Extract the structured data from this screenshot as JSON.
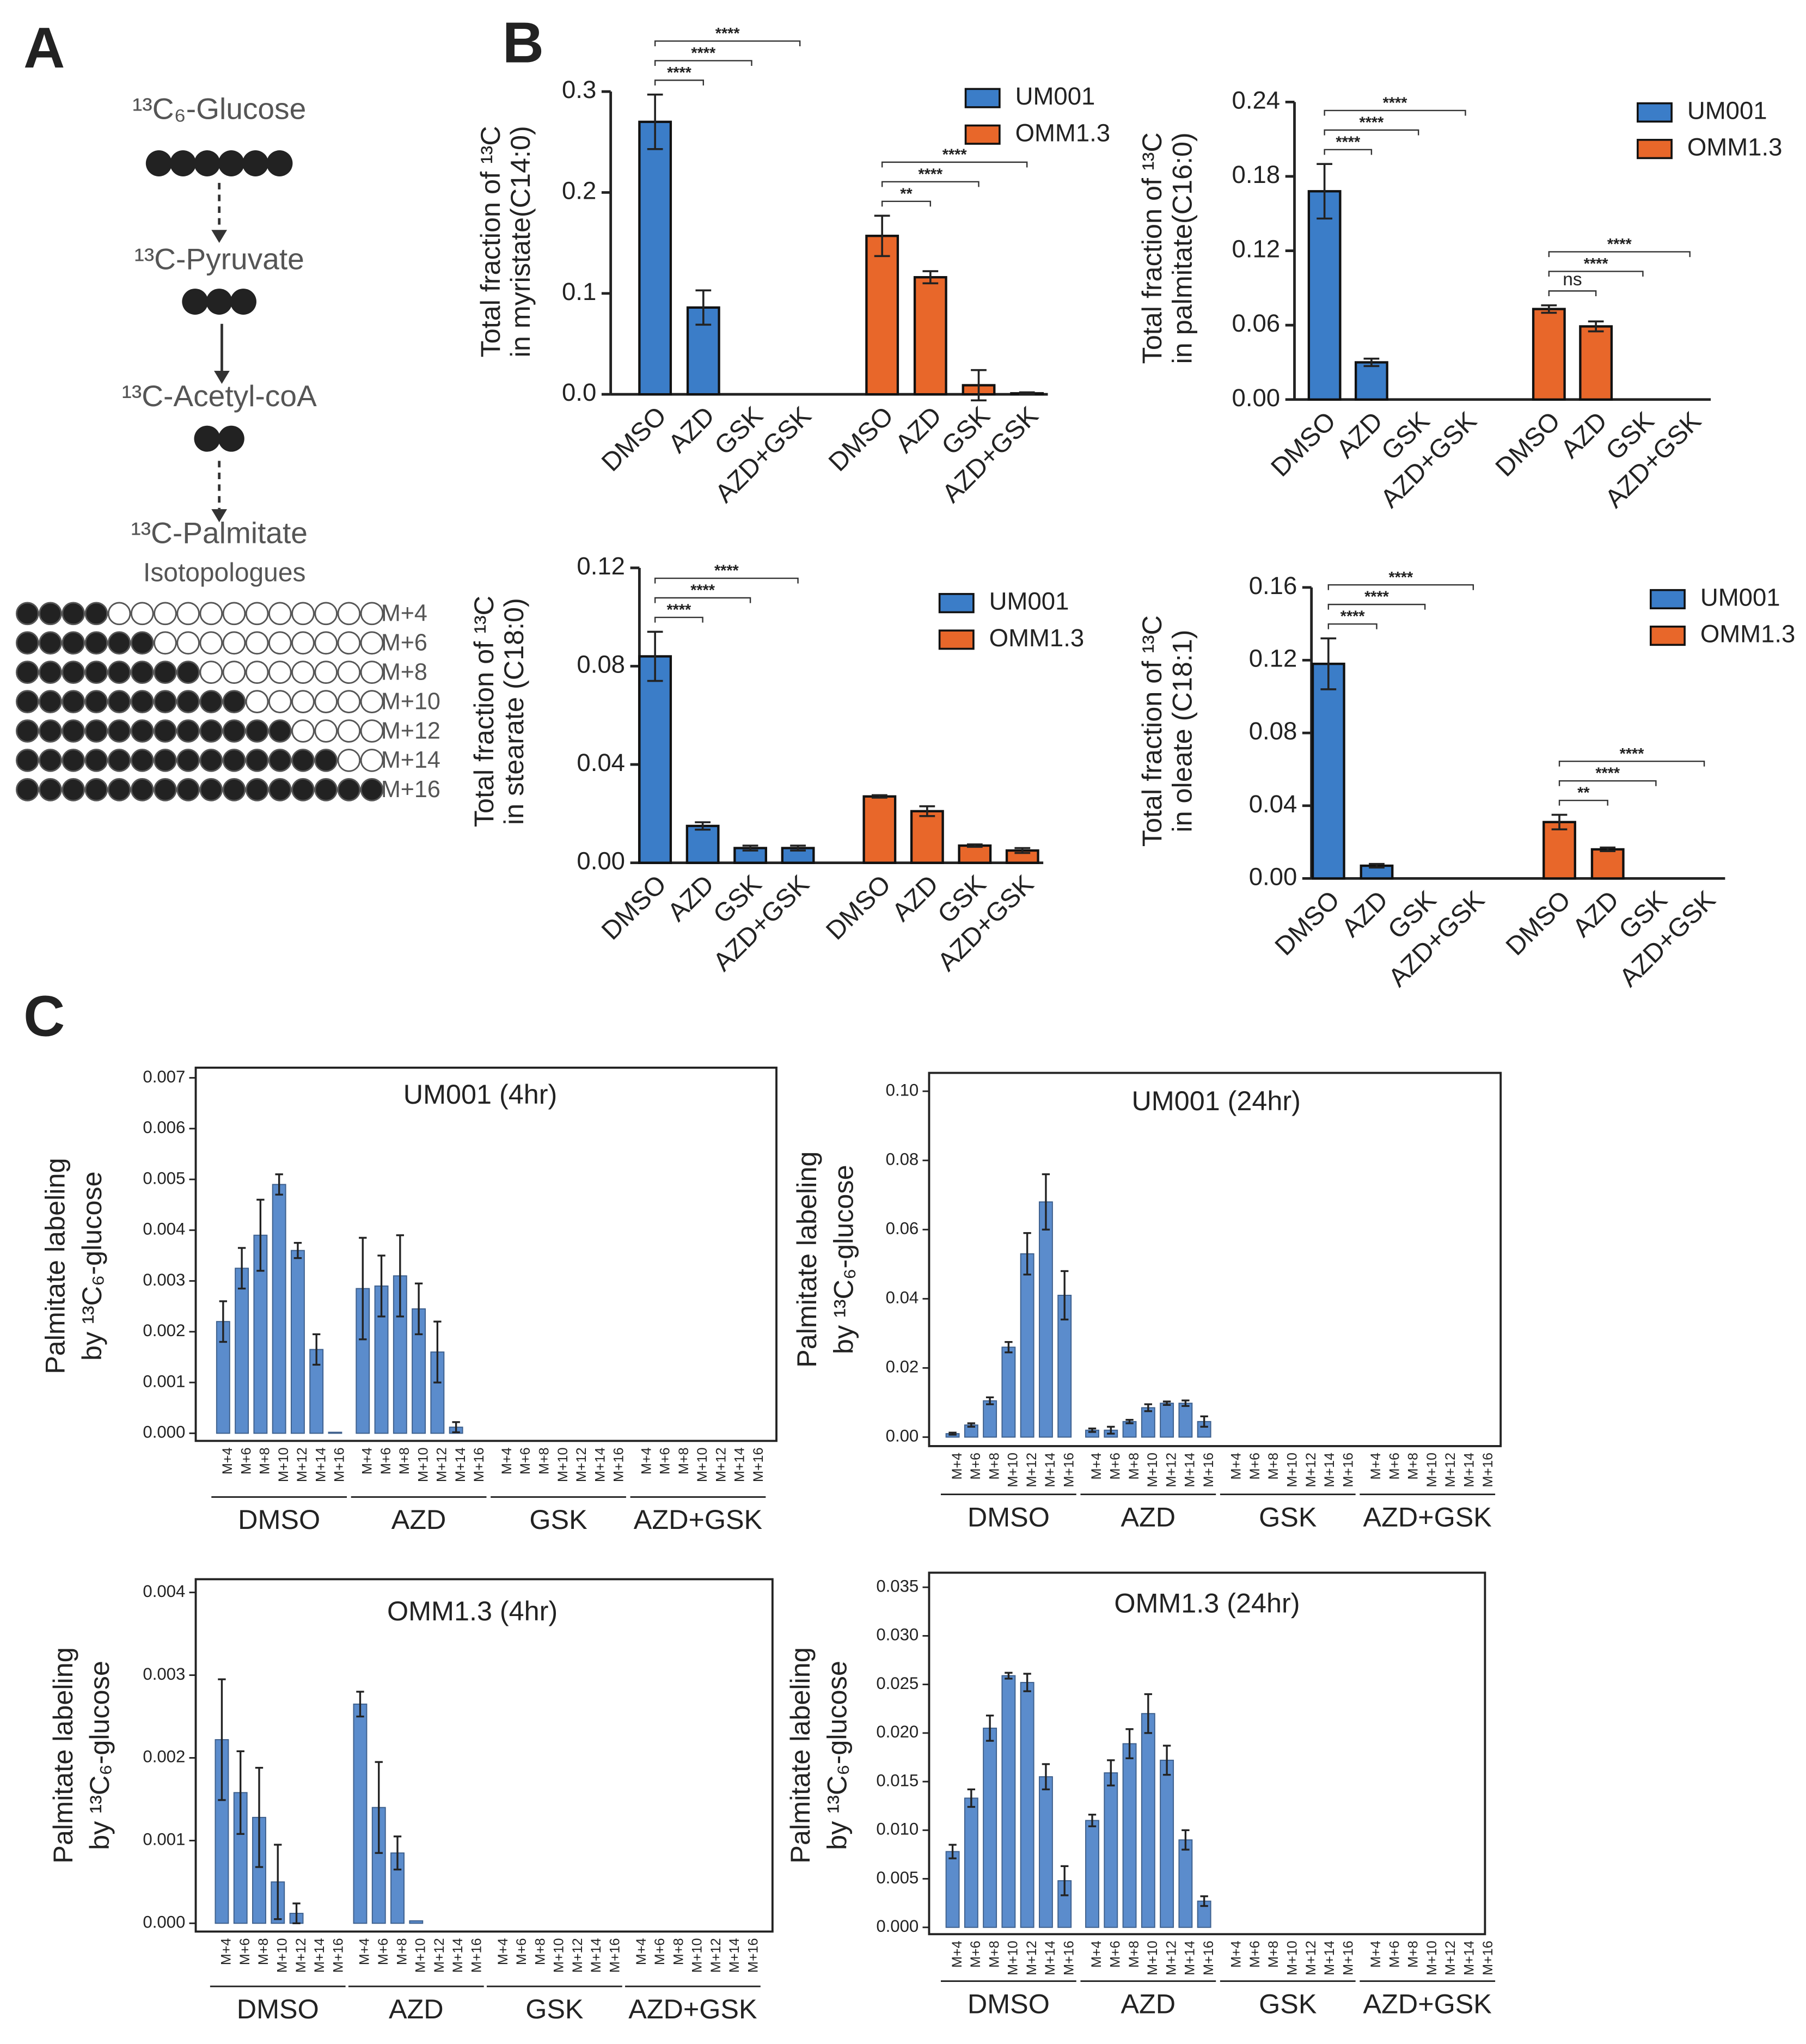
{
  "panels": [
    "A",
    "B",
    "C"
  ],
  "diagram": {
    "steps": [
      {
        "label": "¹³C₆-Glucose",
        "carbons": 6
      },
      {
        "label": "¹³C-Pyruvate",
        "carbons": 3
      },
      {
        "label": "¹³C-Acetyl-coA",
        "carbons": 2
      }
    ],
    "product": [
      "¹³C-Palmitate",
      "Isotopologues"
    ],
    "isotopologues": [
      {
        "label": "M+4",
        "labeled_carbons": 4
      },
      {
        "label": "M+6",
        "labeled_carbons": 6
      },
      {
        "label": "M+8",
        "labeled_carbons": 8
      },
      {
        "label": "M+10",
        "labeled_carbons": 10
      },
      {
        "label": "M+12",
        "labeled_carbons": 12
      },
      {
        "label": "M+14",
        "labeled_carbons": 14
      },
      {
        "label": "M+16",
        "labeled_carbons": 16
      }
    ]
  },
  "chart_data": [
    {
      "type": "bar",
      "ylabel": [
        "Total fraction of ¹³C",
        "in myristate(C14:0)"
      ],
      "categories": [
        "DMSO",
        "AZD",
        "GSK",
        "AZD+GSK"
      ],
      "ylim": [
        0,
        0.3
      ],
      "yticks": [
        {
          "value": 0,
          "label": "0.0"
        },
        0.1,
        0.2,
        0.3
      ],
      "legend": "upper right",
      "series": [
        {
          "name": "UM001",
          "color": "#3b7dc8",
          "values": [
            0.27,
            0.086,
            0,
            0
          ],
          "errors": [
            0.027,
            0.017,
            0,
            0
          ],
          "significance": [
            "****",
            "****",
            "****"
          ]
        },
        {
          "name": "OMM1.3",
          "color": "#e8672a",
          "values": [
            0.157,
            0.116,
            0.009,
            0.001
          ],
          "errors": [
            0.02,
            0.006,
            0.015,
            0.001
          ],
          "significance": [
            "**",
            "****",
            "****"
          ]
        }
      ]
    },
    {
      "type": "bar",
      "ylabel": [
        "Total fraction of ¹³C",
        "in palmitate(C16:0)"
      ],
      "categories": [
        "DMSO",
        "AZD",
        "GSK",
        "AZD+GSK"
      ],
      "ylim": [
        0,
        0.24
      ],
      "yticks": [
        {
          "value": 0,
          "label": "0.00"
        },
        0.06,
        0.12,
        0.18,
        0.24
      ],
      "legend": "upper right",
      "series": [
        {
          "name": "UM001",
          "color": "#3b7dc8",
          "values": [
            0.168,
            0.03,
            0,
            0
          ],
          "errors": [
            0.022,
            0.003,
            0,
            0
          ],
          "significance": [
            "****",
            "****",
            "****"
          ]
        },
        {
          "name": "OMM1.3",
          "color": "#e8672a",
          "values": [
            0.073,
            0.059,
            0,
            0
          ],
          "errors": [
            0.003,
            0.004,
            0,
            0
          ],
          "significance": [
            "ns",
            "****",
            "****"
          ]
        }
      ]
    },
    {
      "type": "bar",
      "ylabel": [
        "Total fraction of ¹³C",
        "in stearate (C18:0)"
      ],
      "categories": [
        "DMSO",
        "AZD",
        "GSK",
        "AZD+GSK"
      ],
      "ylim": [
        0,
        0.12
      ],
      "yticks": [
        {
          "value": 0,
          "label": "0.00"
        },
        0.04,
        0.08,
        0.12
      ],
      "legend": "upper right",
      "series": [
        {
          "name": "UM001",
          "color": "#3b7dc8",
          "values": [
            0.084,
            0.015,
            0.006,
            0.006
          ],
          "errors": [
            0.01,
            0.0015,
            0.001,
            0.001
          ],
          "significance": [
            "****",
            "****",
            "****"
          ]
        },
        {
          "name": "OMM1.3",
          "color": "#e8672a",
          "values": [
            0.027,
            0.021,
            0.007,
            0.005
          ],
          "errors": [
            0.0005,
            0.002,
            0.0005,
            0.001
          ]
        }
      ]
    },
    {
      "type": "bar",
      "ylabel": [
        "Total fraction of ¹³C",
        "in oleate (C18:1)"
      ],
      "categories": [
        "DMSO",
        "AZD",
        "GSK",
        "AZD+GSK"
      ],
      "ylim": [
        0,
        0.16
      ],
      "yticks": [
        {
          "value": 0,
          "label": "0.00"
        },
        0.04,
        0.08,
        0.12,
        0.16
      ],
      "legend": "upper right",
      "series": [
        {
          "name": "UM001",
          "color": "#3b7dc8",
          "values": [
            0.118,
            0.007,
            0,
            0
          ],
          "errors": [
            0.014,
            0.001,
            0,
            0
          ],
          "significance": [
            "****",
            "****",
            "****"
          ]
        },
        {
          "name": "OMM1.3",
          "color": "#e8672a",
          "values": [
            0.031,
            0.016,
            0,
            0
          ],
          "errors": [
            0.004,
            0.001,
            0,
            0
          ],
          "significance": [
            "**",
            "****",
            "****"
          ]
        }
      ]
    },
    {
      "type": "bar",
      "title": "UM001 (4hr)",
      "ylabel": [
        "Palmitate labeling",
        "by ¹³C₆-glucose"
      ],
      "color": "#5b8ccc",
      "categories": [
        "M+4",
        "M+6",
        "M+8",
        "M+10",
        "M+12",
        "M+14",
        "M+16"
      ],
      "ylim": [
        -0.00015,
        0.0072
      ],
      "yticks": [
        {
          "value": 0,
          "label": "0.000"
        },
        0.001,
        0.002,
        0.003,
        0.004,
        0.005,
        0.006,
        0.007
      ],
      "groups": [
        {
          "name": "DMSO",
          "values": [
            0.0022,
            0.00325,
            0.0039,
            0.0049,
            0.0036,
            0.00165,
            2e-05
          ],
          "errors": [
            0.0004,
            0.0004,
            0.0007,
            0.0002,
            0.00015,
            0.0003,
            0
          ]
        },
        {
          "name": "AZD",
          "values": [
            0.00285,
            0.0029,
            0.0031,
            0.00245,
            0.0016,
            0.00012,
            0
          ],
          "errors": [
            0.001,
            0.0006,
            0.0008,
            0.0005,
            0.0006,
            0.0001,
            0
          ]
        },
        {
          "name": "GSK",
          "values": [
            0,
            0,
            0,
            0,
            0,
            0,
            0
          ],
          "errors": [
            0,
            0,
            0,
            0,
            0,
            0,
            0
          ]
        },
        {
          "name": "AZD+GSK",
          "values": [
            0,
            0,
            0,
            0,
            0,
            0,
            0
          ],
          "errors": [
            0,
            0,
            0,
            0,
            0,
            0,
            0
          ]
        }
      ]
    },
    {
      "type": "bar",
      "title": "UM001 (24hr)",
      "ylabel": [
        "Palmitate labeling",
        "by ¹³C₆-glucose"
      ],
      "color": "#5b8ccc",
      "categories": [
        "M+4",
        "M+6",
        "M+8",
        "M+10",
        "M+12",
        "M+14",
        "M+16"
      ],
      "ylim": [
        -0.0026,
        0.1053
      ],
      "yticks": [
        {
          "value": 0,
          "label": "0.00"
        },
        0.02,
        0.04,
        0.06,
        0.08,
        {
          "value": 0.1,
          "label": "0.10"
        }
      ],
      "groups": [
        {
          "name": "DMSO",
          "values": [
            0.001,
            0.0035,
            0.0105,
            0.026,
            0.053,
            0.068,
            0.041
          ],
          "errors": [
            0.0003,
            0.0005,
            0.001,
            0.0015,
            0.006,
            0.008,
            0.007
          ]
        },
        {
          "name": "AZD",
          "values": [
            0.002,
            0.002,
            0.0045,
            0.0085,
            0.0098,
            0.0098,
            0.0045
          ],
          "errors": [
            0.0005,
            0.001,
            0.0005,
            0.001,
            0.0005,
            0.0008,
            0.0015
          ]
        },
        {
          "name": "GSK",
          "values": [
            0,
            0,
            0,
            0,
            0,
            0,
            0
          ],
          "errors": [
            0,
            0,
            0,
            0,
            0,
            0,
            0
          ]
        },
        {
          "name": "AZD+GSK",
          "values": [
            0,
            0,
            0,
            0,
            0,
            0,
            0
          ],
          "errors": [
            0,
            0,
            0,
            0,
            0,
            0,
            0
          ]
        }
      ]
    },
    {
      "type": "bar",
      "title": "OMM1.3 (4hr)",
      "ylabel": [
        "Palmitate labeling",
        "by ¹³C₆-glucose"
      ],
      "color": "#5b8ccc",
      "categories": [
        "M+4",
        "M+6",
        "M+8",
        "M+10",
        "M+12",
        "M+14",
        "M+16"
      ],
      "ylim": [
        -0.0001,
        0.00416
      ],
      "yticks": [
        {
          "value": 0,
          "label": "0.000"
        },
        0.001,
        0.002,
        0.003,
        0.004
      ],
      "groups": [
        {
          "name": "DMSO",
          "values": [
            0.00222,
            0.00158,
            0.00128,
            0.0005,
            0.00012,
            0,
            0
          ],
          "errors": [
            0.00073,
            0.0005,
            0.0006,
            0.00045,
            0.00012,
            0,
            0
          ]
        },
        {
          "name": "AZD",
          "values": [
            0.00265,
            0.0014,
            0.00085,
            3e-05,
            0,
            0,
            0
          ],
          "errors": [
            0.00015,
            0.00055,
            0.0002,
            0,
            0,
            0,
            0
          ]
        },
        {
          "name": "GSK",
          "values": [
            0,
            0,
            0,
            0,
            0,
            0,
            0
          ],
          "errors": [
            0,
            0,
            0,
            0,
            0,
            0,
            0
          ]
        },
        {
          "name": "AZD+GSK",
          "values": [
            0,
            0,
            0,
            0,
            0,
            0,
            0
          ],
          "errors": [
            0,
            0,
            0,
            0,
            0,
            0,
            0
          ]
        }
      ]
    },
    {
      "type": "bar",
      "title": "OMM1.3 (24hr)",
      "ylabel": [
        "Palmitate labeling",
        "by ¹³C₆-glucose"
      ],
      "color": "#5b8ccc",
      "categories": [
        "M+4",
        "M+6",
        "M+8",
        "M+10",
        "M+12",
        "M+14",
        "M+16"
      ],
      "ylim": [
        -0.0007,
        0.0365
      ],
      "yticks": [
        {
          "value": 0,
          "label": "0.000"
        },
        0.005,
        {
          "value": 0.01,
          "label": "0.010"
        },
        0.015,
        {
          "value": 0.02,
          "label": "0.020"
        },
        0.025,
        {
          "value": 0.03,
          "label": "0.030"
        },
        0.035
      ],
      "groups": [
        {
          "name": "DMSO",
          "values": [
            0.0078,
            0.0133,
            0.0205,
            0.0259,
            0.0252,
            0.0155,
            0.0048
          ],
          "errors": [
            0.0007,
            0.0009,
            0.0013,
            0.0003,
            0.0009,
            0.0013,
            0.0015
          ]
        },
        {
          "name": "AZD",
          "values": [
            0.011,
            0.0159,
            0.0189,
            0.022,
            0.0172,
            0.009,
            0.0027
          ],
          "errors": [
            0.0006,
            0.0013,
            0.0015,
            0.002,
            0.0015,
            0.001,
            0.0005
          ]
        },
        {
          "name": "GSK",
          "values": [
            0,
            0,
            0,
            0,
            0,
            0,
            0
          ],
          "errors": [
            0,
            0,
            0,
            0,
            0,
            0,
            0
          ]
        },
        {
          "name": "AZD+GSK",
          "values": [
            0,
            0,
            0,
            0,
            0,
            0,
            0
          ],
          "errors": [
            0,
            0,
            0,
            0,
            0,
            0,
            0
          ]
        }
      ]
    }
  ]
}
